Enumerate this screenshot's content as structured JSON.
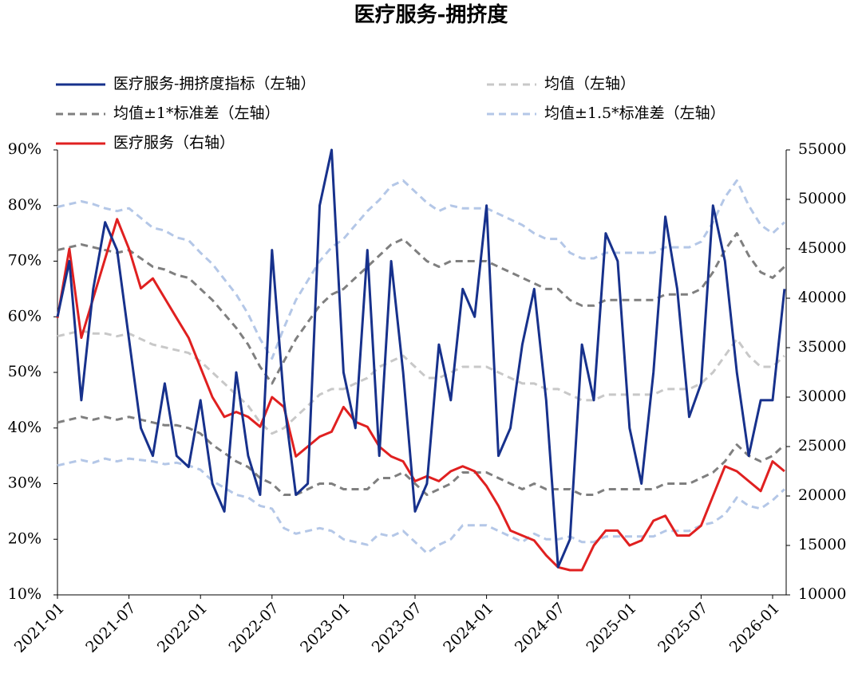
{
  "chart_data": {
    "type": "line",
    "title": "医疗服务-拥挤度",
    "x": [
      "2021-01",
      null,
      null,
      null,
      null,
      null,
      "2021-07",
      null,
      null,
      null,
      null,
      null,
      "2022-01",
      null,
      null,
      null,
      null,
      null,
      "2022-07",
      null,
      null,
      null,
      null,
      null,
      "2023-01",
      null,
      null,
      null,
      null,
      null,
      "2023-07",
      null,
      null,
      null,
      null,
      null,
      "2024-01",
      null,
      null,
      null,
      null,
      null,
      "2024-07",
      null,
      null,
      null,
      null,
      null,
      "2025-01",
      null,
      null,
      null,
      null,
      null,
      "2025-07",
      null,
      null,
      null,
      null,
      null,
      "2026-01",
      null
    ],
    "ylim": [
      10,
      90
    ],
    "yticks": [
      {
        "value": 10,
        "label": "10%"
      },
      {
        "value": 20,
        "label": "20%"
      },
      {
        "value": 30,
        "label": "30%"
      },
      {
        "value": 40,
        "label": "40%"
      },
      {
        "value": 50,
        "label": "50%"
      },
      {
        "value": 60,
        "label": "60%"
      },
      {
        "value": 70,
        "label": "70%"
      },
      {
        "value": 80,
        "label": "80%"
      },
      {
        "value": 90,
        "label": "90%"
      }
    ],
    "y2lim": [
      10000,
      55000
    ],
    "y2ticks": [
      10000,
      15000,
      20000,
      25000,
      30000,
      35000,
      40000,
      45000,
      50000,
      55000
    ],
    "series": [
      {
        "name": "医疗服务-拥挤度指标（左轴）",
        "color": "#17318c",
        "dashed": false,
        "values": [
          60,
          70,
          45,
          65,
          77,
          72,
          56,
          40,
          35,
          48,
          35,
          33,
          45,
          30,
          25,
          50,
          35,
          28,
          72,
          45,
          28,
          30,
          80,
          90,
          50,
          40,
          72,
          35,
          70,
          50,
          25,
          30,
          55,
          45,
          65,
          60,
          80,
          35,
          40,
          55,
          65,
          45,
          15,
          20,
          55,
          45,
          75,
          70,
          40,
          30,
          50,
          78,
          65,
          42,
          48,
          80,
          70,
          50,
          35,
          45,
          45,
          65
        ]
      },
      {
        "name": "均值（左轴）",
        "color": "#c8c8c8",
        "dashed": true,
        "values": [
          56.5,
          57,
          57.5,
          57,
          57,
          56.5,
          57,
          56,
          55,
          54.5,
          54,
          53.5,
          52,
          50,
          48,
          46,
          44,
          41,
          39,
          40,
          42,
          44,
          46,
          47,
          47,
          48,
          49,
          51,
          52,
          53,
          51,
          49,
          49,
          50,
          51,
          51,
          51,
          50,
          49,
          48,
          48,
          47,
          47,
          46,
          45,
          45,
          46,
          46,
          46,
          46,
          46,
          47,
          47,
          47,
          48,
          50,
          53,
          56,
          53,
          51,
          51,
          53
        ]
      },
      {
        "name": "均值±1*标准差（左轴）",
        "color": "#7f7f7f",
        "dashed": true,
        "upper": [
          72,
          72.5,
          73,
          72.5,
          72,
          71.5,
          72,
          70.5,
          69,
          68.5,
          67.5,
          67,
          65,
          63,
          60.5,
          58,
          55,
          51,
          48,
          52,
          56,
          59,
          62,
          64,
          65,
          67,
          69,
          71,
          73,
          74,
          72,
          70,
          69,
          70,
          70,
          70,
          70,
          69,
          68,
          67,
          66,
          65,
          65,
          63,
          62,
          62,
          63,
          63,
          63,
          63,
          63,
          64,
          64,
          64,
          65,
          68,
          72,
          75,
          71,
          68,
          67,
          69
        ],
        "lower": [
          41,
          41.5,
          42,
          41.5,
          42,
          41.5,
          42,
          41.5,
          41,
          40.5,
          40.5,
          40,
          39,
          37,
          35.5,
          34,
          33,
          31,
          30,
          28,
          28,
          29,
          30,
          30,
          29,
          29,
          29,
          31,
          31,
          32,
          30,
          28,
          29,
          30,
          32,
          32,
          32,
          31,
          30,
          29,
          30,
          29,
          29,
          29,
          28,
          28,
          29,
          29,
          29,
          29,
          29,
          30,
          30,
          30,
          31,
          32,
          34,
          37,
          35,
          34,
          35,
          37
        ]
      },
      {
        "name": "均值±1.5*标准差（左轴）",
        "color": "#b4c7e7",
        "dashed": true,
        "upper": [
          79.75,
          80.25,
          80.75,
          80.25,
          79.5,
          79,
          79.5,
          77.75,
          76,
          75.5,
          74.25,
          73.75,
          71.5,
          69.5,
          66.75,
          64,
          60.5,
          56,
          52.5,
          58,
          63,
          66.5,
          70,
          72.5,
          74,
          76.5,
          79,
          81,
          83.5,
          84.5,
          82.5,
          80.5,
          79,
          80,
          79.5,
          79.5,
          79.5,
          78.5,
          77.5,
          76.5,
          75,
          74,
          74,
          71.5,
          70.5,
          70.5,
          71.5,
          71.5,
          71.5,
          71.5,
          71.5,
          72.5,
          72.5,
          72.5,
          73.5,
          77,
          81.5,
          84.5,
          80,
          76.5,
          75,
          77
        ],
        "lower": [
          33.25,
          33.75,
          34.25,
          33.75,
          34.5,
          34,
          34.5,
          34.25,
          34,
          33.5,
          33.75,
          33.25,
          32.5,
          30.5,
          29.25,
          28,
          27.5,
          26,
          25.5,
          22,
          21,
          21.5,
          22,
          21.5,
          20,
          19.5,
          19,
          21,
          20.5,
          21.5,
          19.5,
          17.5,
          19,
          20,
          22.5,
          22.5,
          22.5,
          21.5,
          20.5,
          19.5,
          21,
          20,
          20,
          20.5,
          19.5,
          19.5,
          20.5,
          20.5,
          20.5,
          20.5,
          20.5,
          21.5,
          21.5,
          21.5,
          22.5,
          23,
          24.5,
          27.5,
          26,
          25.5,
          27,
          29
        ]
      },
      {
        "name": "医疗服务（右轴）",
        "color": "#e02020",
        "dashed": false,
        "axis": "y2",
        "values": [
          38000,
          45000,
          36000,
          40000,
          44000,
          48000,
          45000,
          41000,
          42000,
          40000,
          38000,
          36000,
          33000,
          30000,
          28000,
          28500,
          28000,
          27000,
          30000,
          29000,
          24000,
          25000,
          26000,
          26500,
          29000,
          27500,
          27000,
          25000,
          24000,
          23500,
          21500,
          22000,
          21500,
          22500,
          23000,
          22500,
          21000,
          19000,
          16500,
          16000,
          15500,
          14000,
          12800,
          12500,
          12500,
          15000,
          16500,
          16500,
          15000,
          15500,
          17500,
          18000,
          16000,
          16000,
          17000,
          20000,
          23000,
          22500,
          21500,
          20500,
          23500,
          22500
        ]
      }
    ]
  }
}
